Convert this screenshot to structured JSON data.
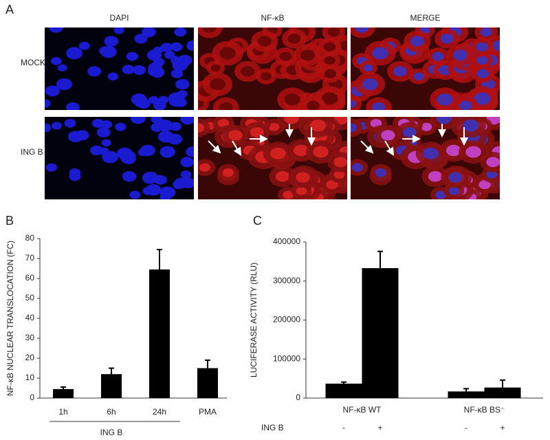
{
  "panel_a": {
    "letter": "A",
    "columns": [
      "DAPI",
      "NF-κB",
      "MERGE"
    ],
    "rows": [
      "MOCK",
      "ING B"
    ]
  },
  "chart_data": [
    {
      "type": "bar",
      "panel": "B",
      "y_label": "NF-κB NUCLEAR TRANSLOCATION (FC)",
      "categories": [
        "1h",
        "6h",
        "24h",
        "PMA"
      ],
      "values": [
        4.5,
        12,
        64.5,
        15
      ],
      "errors": [
        1,
        3,
        10,
        4
      ],
      "group_label": "ING B",
      "color": "#000000",
      "ylim": [
        0,
        80
      ],
      "yticks": [
        0,
        10,
        20,
        30,
        40,
        50,
        60,
        70,
        80
      ]
    },
    {
      "type": "bar",
      "panel": "C",
      "y_label": "LUCIFERASE ACTIVITY (RLU)",
      "groups": [
        "NF-κB WT",
        "NF-κB BS⁻"
      ],
      "row_label": "ING B",
      "categories": [
        "-",
        "+",
        "-",
        "+"
      ],
      "values": [
        37000,
        333000,
        17000,
        27000
      ],
      "errors": [
        4000,
        43000,
        7000,
        19000
      ],
      "color": "#000000",
      "ylim": [
        0,
        400000
      ],
      "yticks": [
        0,
        100000,
        200000,
        300000,
        400000
      ]
    }
  ]
}
